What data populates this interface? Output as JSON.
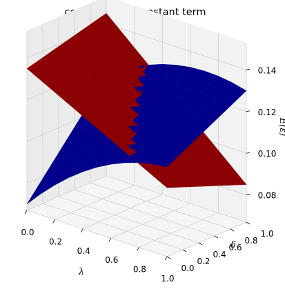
{
  "chart_data": {
    "type": "surface3d",
    "title": "coefficient on constant term",
    "xlabel": "λ",
    "ylabel": "δ",
    "zlabel": "E(ε)",
    "x_ticks": [
      "0.0",
      "0.2",
      "0.4",
      "0.6",
      "0.8",
      "1.0"
    ],
    "y_ticks": [
      "0.0",
      "0.2",
      "0.4",
      "0.6",
      "0.8",
      "1.0"
    ],
    "z_ticks": [
      "0.08",
      "0.10",
      "0.12",
      "0.14"
    ],
    "xlim": [
      0,
      1
    ],
    "ylim": [
      0,
      1
    ],
    "zlim": [
      0.067,
      0.153
    ],
    "grid": true,
    "x": [
      0.0,
      0.1,
      0.2,
      0.3,
      0.4,
      0.5,
      0.6,
      0.7,
      0.8,
      0.9,
      1.0
    ],
    "y": [
      0.0,
      0.1,
      0.2,
      0.3,
      0.4,
      0.5,
      0.6,
      0.7,
      0.8,
      0.9,
      1.0
    ],
    "series": [
      {
        "color": "#8b0000",
        "corners": {
          "x0y0": 0.135,
          "x1y0": 0.1,
          "x0y1": 0.145,
          "x1y1": 0.085
        }
      },
      {
        "color": "#00008b",
        "corners": {
          "x0y0": 0.07,
          "x1y0": 0.11,
          "x0y1": 0.115,
          "x1y1": 0.13
        },
        "curvature": 0.035
      }
    ]
  }
}
